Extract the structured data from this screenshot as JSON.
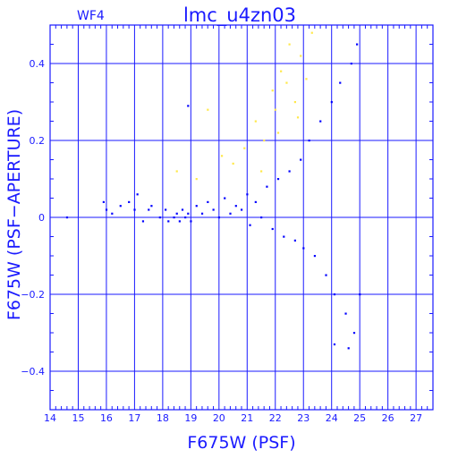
{
  "chart_data": {
    "type": "scatter",
    "title": "lmc_u4zn03",
    "subtitle": "WF4",
    "xlabel": "F675W (PSF)",
    "ylabel": "F675W (PSF−APERTURE)",
    "xlim": [
      14,
      27.6
    ],
    "ylim": [
      -0.5,
      0.5
    ],
    "xticks": [
      14,
      15,
      16,
      17,
      18,
      19,
      20,
      21,
      22,
      23,
      24,
      25,
      26,
      27
    ],
    "xtick_labels": [
      "14",
      "15",
      "16",
      "17",
      "18",
      "19",
      "20",
      "21",
      "22",
      "23",
      "24",
      "25",
      "26",
      "27"
    ],
    "yticks": [
      -0.4,
      -0.2,
      0,
      0.2,
      0.4
    ],
    "ytick_labels": [
      "−0.4",
      "−0.2",
      "0",
      "0.2",
      "0.4"
    ],
    "grid": true,
    "series": [
      {
        "color": "#0000ff",
        "points": [
          [
            14.6,
            0.0
          ],
          [
            15.9,
            0.04
          ],
          [
            16.0,
            0.02
          ],
          [
            16.2,
            0.01
          ],
          [
            16.5,
            0.03
          ],
          [
            16.8,
            0.04
          ],
          [
            17.0,
            0.02
          ],
          [
            17.1,
            0.06
          ],
          [
            17.3,
            -0.01
          ],
          [
            17.5,
            0.02
          ],
          [
            17.6,
            0.03
          ],
          [
            17.9,
            0.0
          ],
          [
            18.1,
            0.02
          ],
          [
            18.2,
            -0.01
          ],
          [
            18.4,
            0.0
          ],
          [
            18.5,
            0.01
          ],
          [
            18.6,
            -0.01
          ],
          [
            18.7,
            0.02
          ],
          [
            18.8,
            0.0
          ],
          [
            18.9,
            0.01
          ],
          [
            19.0,
            -0.01
          ],
          [
            19.2,
            0.03
          ],
          [
            19.4,
            0.01
          ],
          [
            19.6,
            0.04
          ],
          [
            19.8,
            0.02
          ],
          [
            20.0,
            0.0
          ],
          [
            20.2,
            0.05
          ],
          [
            20.4,
            0.01
          ],
          [
            20.6,
            0.03
          ],
          [
            20.8,
            0.02
          ],
          [
            21.0,
            0.06
          ],
          [
            21.1,
            -0.02
          ],
          [
            21.3,
            0.04
          ],
          [
            21.5,
            0.0
          ],
          [
            21.7,
            0.08
          ],
          [
            21.9,
            -0.03
          ],
          [
            22.1,
            0.1
          ],
          [
            22.3,
            -0.05
          ],
          [
            22.5,
            0.12
          ],
          [
            22.7,
            -0.06
          ],
          [
            22.9,
            0.15
          ],
          [
            23.0,
            -0.08
          ],
          [
            23.2,
            0.2
          ],
          [
            23.4,
            -0.1
          ],
          [
            23.6,
            0.25
          ],
          [
            23.8,
            -0.15
          ],
          [
            24.0,
            0.3
          ],
          [
            24.1,
            -0.2
          ],
          [
            24.3,
            0.35
          ],
          [
            24.5,
            -0.25
          ],
          [
            24.7,
            0.4
          ],
          [
            24.8,
            -0.3
          ],
          [
            24.9,
            0.45
          ],
          [
            25.0,
            -0.2
          ],
          [
            18.9,
            0.29
          ],
          [
            24.1,
            -0.33
          ],
          [
            24.6,
            -0.34
          ]
        ]
      },
      {
        "color": "#ffe84a",
        "points": [
          [
            18.5,
            0.12
          ],
          [
            19.2,
            0.1
          ],
          [
            19.6,
            0.28
          ],
          [
            20.1,
            0.16
          ],
          [
            20.5,
            0.14
          ],
          [
            20.9,
            0.18
          ],
          [
            21.3,
            0.25
          ],
          [
            21.6,
            0.2
          ],
          [
            21.9,
            0.33
          ],
          [
            22.0,
            0.28
          ],
          [
            22.2,
            0.38
          ],
          [
            22.4,
            0.35
          ],
          [
            22.5,
            0.45
          ],
          [
            22.7,
            0.3
          ],
          [
            22.9,
            0.42
          ],
          [
            23.1,
            0.36
          ],
          [
            23.3,
            0.48
          ],
          [
            21.5,
            0.12
          ],
          [
            22.1,
            0.22
          ],
          [
            22.8,
            0.26
          ]
        ]
      }
    ]
  }
}
